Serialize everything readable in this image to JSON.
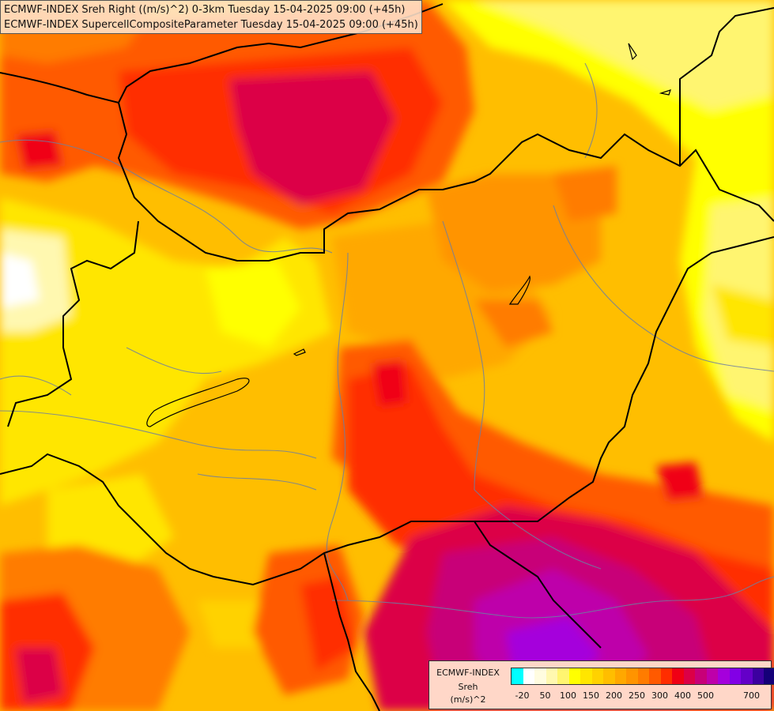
{
  "title_lines": [
    "ECMWF-INDEX Sreh Right ((m/s)^2) 0-3km Tuesday 15-04-2025 09:00 (+45h)",
    "ECMWF-INDEX SupercellCompositeParameter Tuesday 15-04-2025 09:00 (+45h)"
  ],
  "legend": {
    "model": "ECMWF-INDEX",
    "variable": "Sreh",
    "unit": "(m/s)^2",
    "colors": [
      "#00ffff",
      "#ffffff",
      "#fffce0",
      "#fff8b0",
      "#fff570",
      "#ffff00",
      "#ffe600",
      "#ffd200",
      "#ffbe00",
      "#ffa800",
      "#ff9400",
      "#ff7c00",
      "#ff5a00",
      "#ff2d00",
      "#f00014",
      "#dc0046",
      "#c80078",
      "#be00aa",
      "#a500dc",
      "#8200e6",
      "#6400c8",
      "#3c00a0",
      "#140078"
    ],
    "ticks": [
      "-20",
      "50",
      "100",
      "150",
      "200",
      "250",
      "300",
      "400",
      "500",
      "700"
    ]
  }
}
